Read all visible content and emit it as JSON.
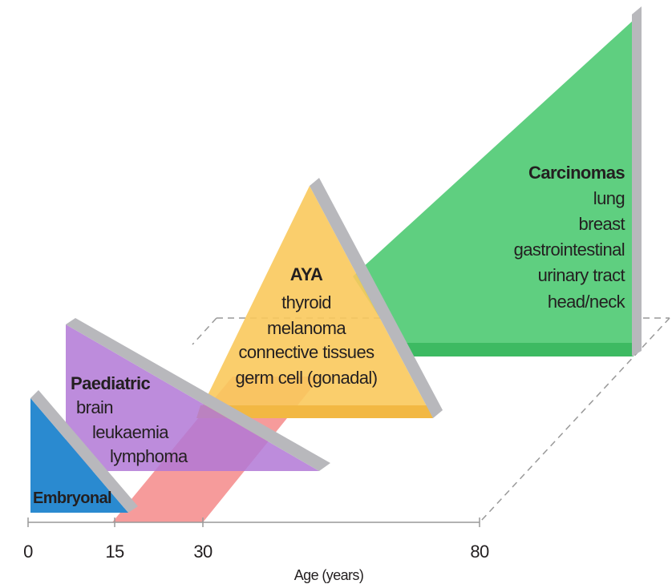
{
  "groups": [
    {
      "title": "Embryonal",
      "items": []
    },
    {
      "title": "Paediatric",
      "items": [
        "brain",
        "leukaemia",
        "lymphoma"
      ]
    },
    {
      "title": "AYA",
      "items": [
        "thyroid",
        "melanoma",
        "connective tissues",
        "germ cell (gonadal)"
      ]
    },
    {
      "title": "Carcinomas",
      "items": [
        "lung",
        "breast",
        "gastrointestinal",
        "urinary tract",
        "head/neck"
      ]
    }
  ],
  "axis": {
    "label": "Age (years)",
    "ticks": [
      "0",
      "15",
      "30",
      "80"
    ]
  }
}
